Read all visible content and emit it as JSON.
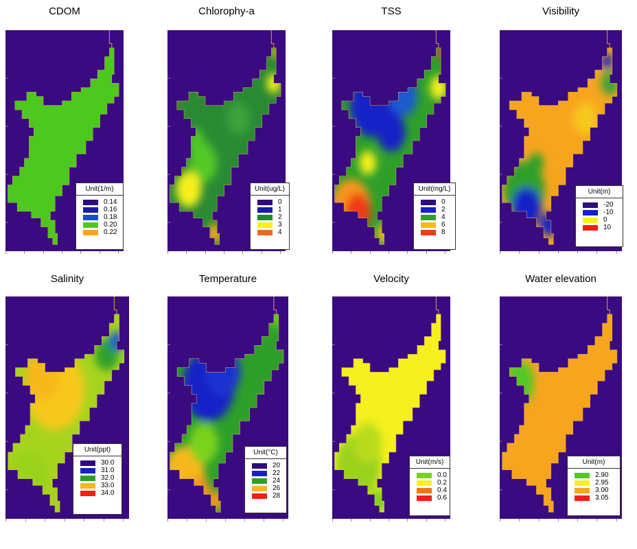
{
  "colors": {
    "background_water": "#3a0a80",
    "land_boundary": "#c8a064"
  },
  "panels": [
    {
      "id": "cdom",
      "title": "CDOM",
      "legend": {
        "title": "Unit(1/m)",
        "items": [
          {
            "label": "0.14",
            "color": "#2d0c7c"
          },
          {
            "label": "0.16",
            "color": "#1b1ba5"
          },
          {
            "label": "0.18",
            "color": "#1a4fcc"
          },
          {
            "label": "0.20",
            "color": "#52c828"
          },
          {
            "label": "0.22",
            "color": "#f7a51e"
          }
        ]
      },
      "fill": "uniform-green"
    },
    {
      "id": "chlorophyll",
      "title": "Chlorophy-a",
      "legend": {
        "title": "Unit(ug/L)",
        "items": [
          {
            "label": "0",
            "color": "#2d0c7c"
          },
          {
            "label": "1",
            "color": "#1b1ba5"
          },
          {
            "label": "2",
            "color": "#1c8a2e"
          },
          {
            "label": "3",
            "color": "#f5f01e"
          },
          {
            "label": "4",
            "color": "#f06820"
          }
        ]
      },
      "fill": "dark-green-mix"
    },
    {
      "id": "tss",
      "title": "TSS",
      "legend": {
        "title": "Unit(mg/L)",
        "items": [
          {
            "label": "0",
            "color": "#2d0c7c"
          },
          {
            "label": "2",
            "color": "#1620c8"
          },
          {
            "label": "4",
            "color": "#2ea02a"
          },
          {
            "label": "6",
            "color": "#f7b81e"
          },
          {
            "label": "8",
            "color": "#f03a18"
          }
        ]
      },
      "fill": "blue-green-red"
    },
    {
      "id": "visibility",
      "title": "Visibility",
      "legend": {
        "title": "Unit(m)",
        "items": [
          {
            "label": "-20",
            "color": "#2d0c7c"
          },
          {
            "label": "-10",
            "color": "#1620c8"
          },
          {
            "label": "0",
            "color": "#f5f01e"
          },
          {
            "label": "10",
            "color": "#f02018"
          }
        ]
      },
      "fill": "orange-blue"
    },
    {
      "id": "salinity",
      "title": "Salinity",
      "legend": {
        "title": "Unit(ppt)",
        "items": [
          {
            "label": "30.0",
            "color": "#2d0c7c"
          },
          {
            "label": "31.0",
            "color": "#1620c8"
          },
          {
            "label": "32.0",
            "color": "#2ea02a"
          },
          {
            "label": "33.0",
            "color": "#f7b81e"
          },
          {
            "label": "34.0",
            "color": "#f02018"
          }
        ]
      },
      "fill": "yellow-green"
    },
    {
      "id": "temperature",
      "title": "Temperature",
      "legend": {
        "title": "Unit(°C)",
        "items": [
          {
            "label": "20",
            "color": "#2d0c7c"
          },
          {
            "label": "22",
            "color": "#1620c8"
          },
          {
            "label": "24",
            "color": "#2ea02a"
          },
          {
            "label": "26",
            "color": "#f7b81e"
          },
          {
            "label": "28",
            "color": "#f02018"
          }
        ]
      },
      "fill": "blue-green-orange"
    },
    {
      "id": "velocity",
      "title": "Velocity",
      "legend": {
        "title": "Unit(m/s)",
        "items": [
          {
            "label": "0.0",
            "color": "#7ad21e"
          },
          {
            "label": "0.2",
            "color": "#f5f01e"
          },
          {
            "label": "0.4",
            "color": "#f07818"
          },
          {
            "label": "0.6",
            "color": "#f02018"
          }
        ]
      },
      "fill": "yellow-lime"
    },
    {
      "id": "water-elevation",
      "title": "Water elevation",
      "legend": {
        "title": "Unit(m)",
        "items": [
          {
            "label": "2.90",
            "color": "#52c828"
          },
          {
            "label": "2.95",
            "color": "#f5f01e"
          },
          {
            "label": "3.00",
            "color": "#f7a51e"
          },
          {
            "label": "3.05",
            "color": "#f02018"
          }
        ]
      },
      "fill": "uniform-orange"
    }
  ]
}
